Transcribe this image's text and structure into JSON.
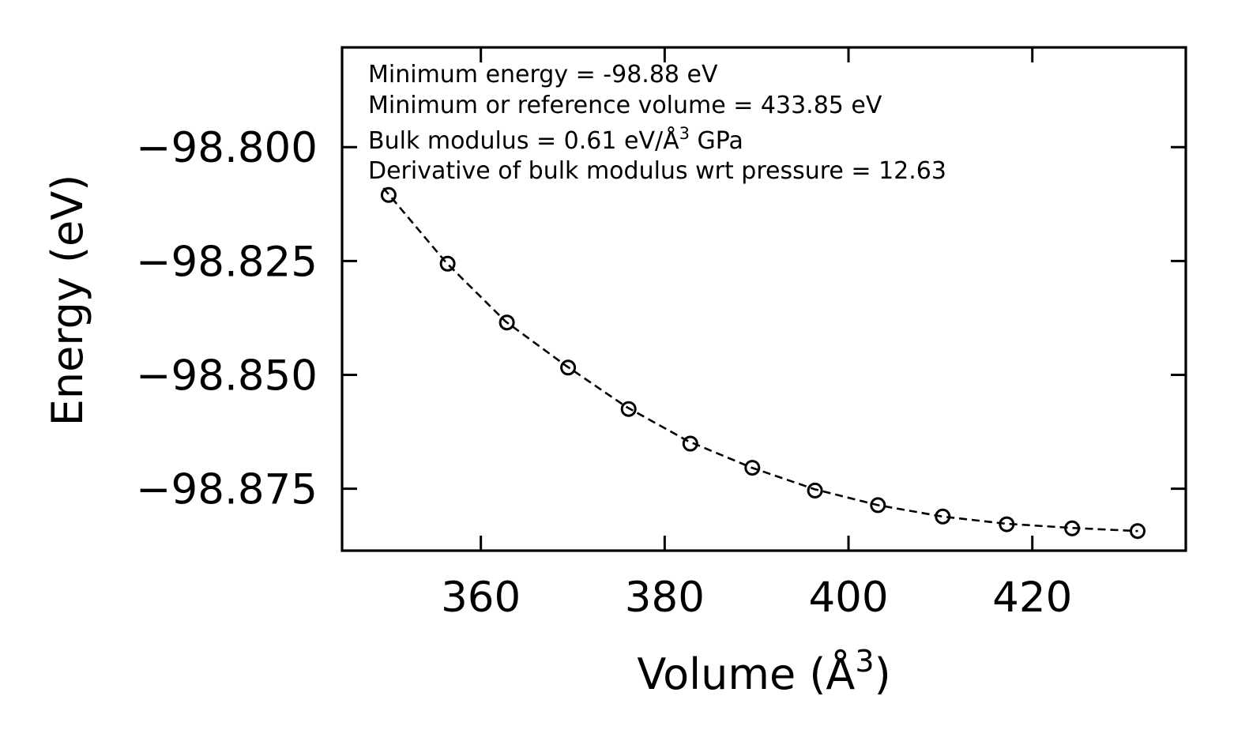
{
  "chart_data": {
    "type": "scatter",
    "xlabel": "Volume (Å$^3$)",
    "xlabel_main": "Volume (Å",
    "xlabel_sup": "3",
    "xlabel_close": ")",
    "ylabel": "Energy (eV)",
    "xlim": [
      344.9,
      436.7
    ],
    "ylim": [
      -98.8886,
      -98.7781
    ],
    "xticks": [
      360,
      380,
      400,
      420
    ],
    "xtick_labels": [
      "360",
      "380",
      "400",
      "420"
    ],
    "yticks": [
      -98.8,
      -98.825,
      -98.85,
      -98.875
    ],
    "ytick_labels": [
      "−98.800",
      "−98.825",
      "−98.850",
      "−98.875"
    ],
    "grid": false,
    "series": [
      {
        "name": "data",
        "marker": "open-circle",
        "x": [
          349.96,
          356.38,
          362.83,
          369.49,
          376.08,
          382.79,
          389.54,
          396.35,
          403.2,
          410.25,
          417.21,
          424.33,
          431.46
        ],
        "y": [
          -98.8105,
          -98.8256,
          -98.8385,
          -98.8484,
          -98.8575,
          -98.8651,
          -98.8704,
          -98.8754,
          -98.8786,
          -98.8811,
          -98.8828,
          -98.8837,
          -98.8843
        ]
      },
      {
        "name": "fit",
        "style": "dashed",
        "x": [
          349.4,
          356.2,
          362.7,
          369.2,
          375.8,
          382.5,
          389.5,
          396.3,
          403.2,
          410.2,
          417.2,
          424.3,
          431.5
        ],
        "y": [
          -98.809,
          -98.8253,
          -98.8383,
          -98.8479,
          -98.857,
          -98.8645,
          -98.8704,
          -98.8751,
          -98.8786,
          -98.8811,
          -98.8827,
          -98.8836,
          -98.8843
        ]
      }
    ],
    "annotations": [
      {
        "text": "Minimum energy = -98.88 eV"
      },
      {
        "text": "Minimum or reference volume = 433.85 eV"
      },
      {
        "text": "Bulk modulus = 0.61 eV/Å$^3$ GPa",
        "main": "Bulk modulus = 0.61 eV/Å",
        "sup": "3",
        "tail": " GPa"
      },
      {
        "text": "Derivative of bulk modulus wrt pressure = 12.63"
      }
    ]
  }
}
